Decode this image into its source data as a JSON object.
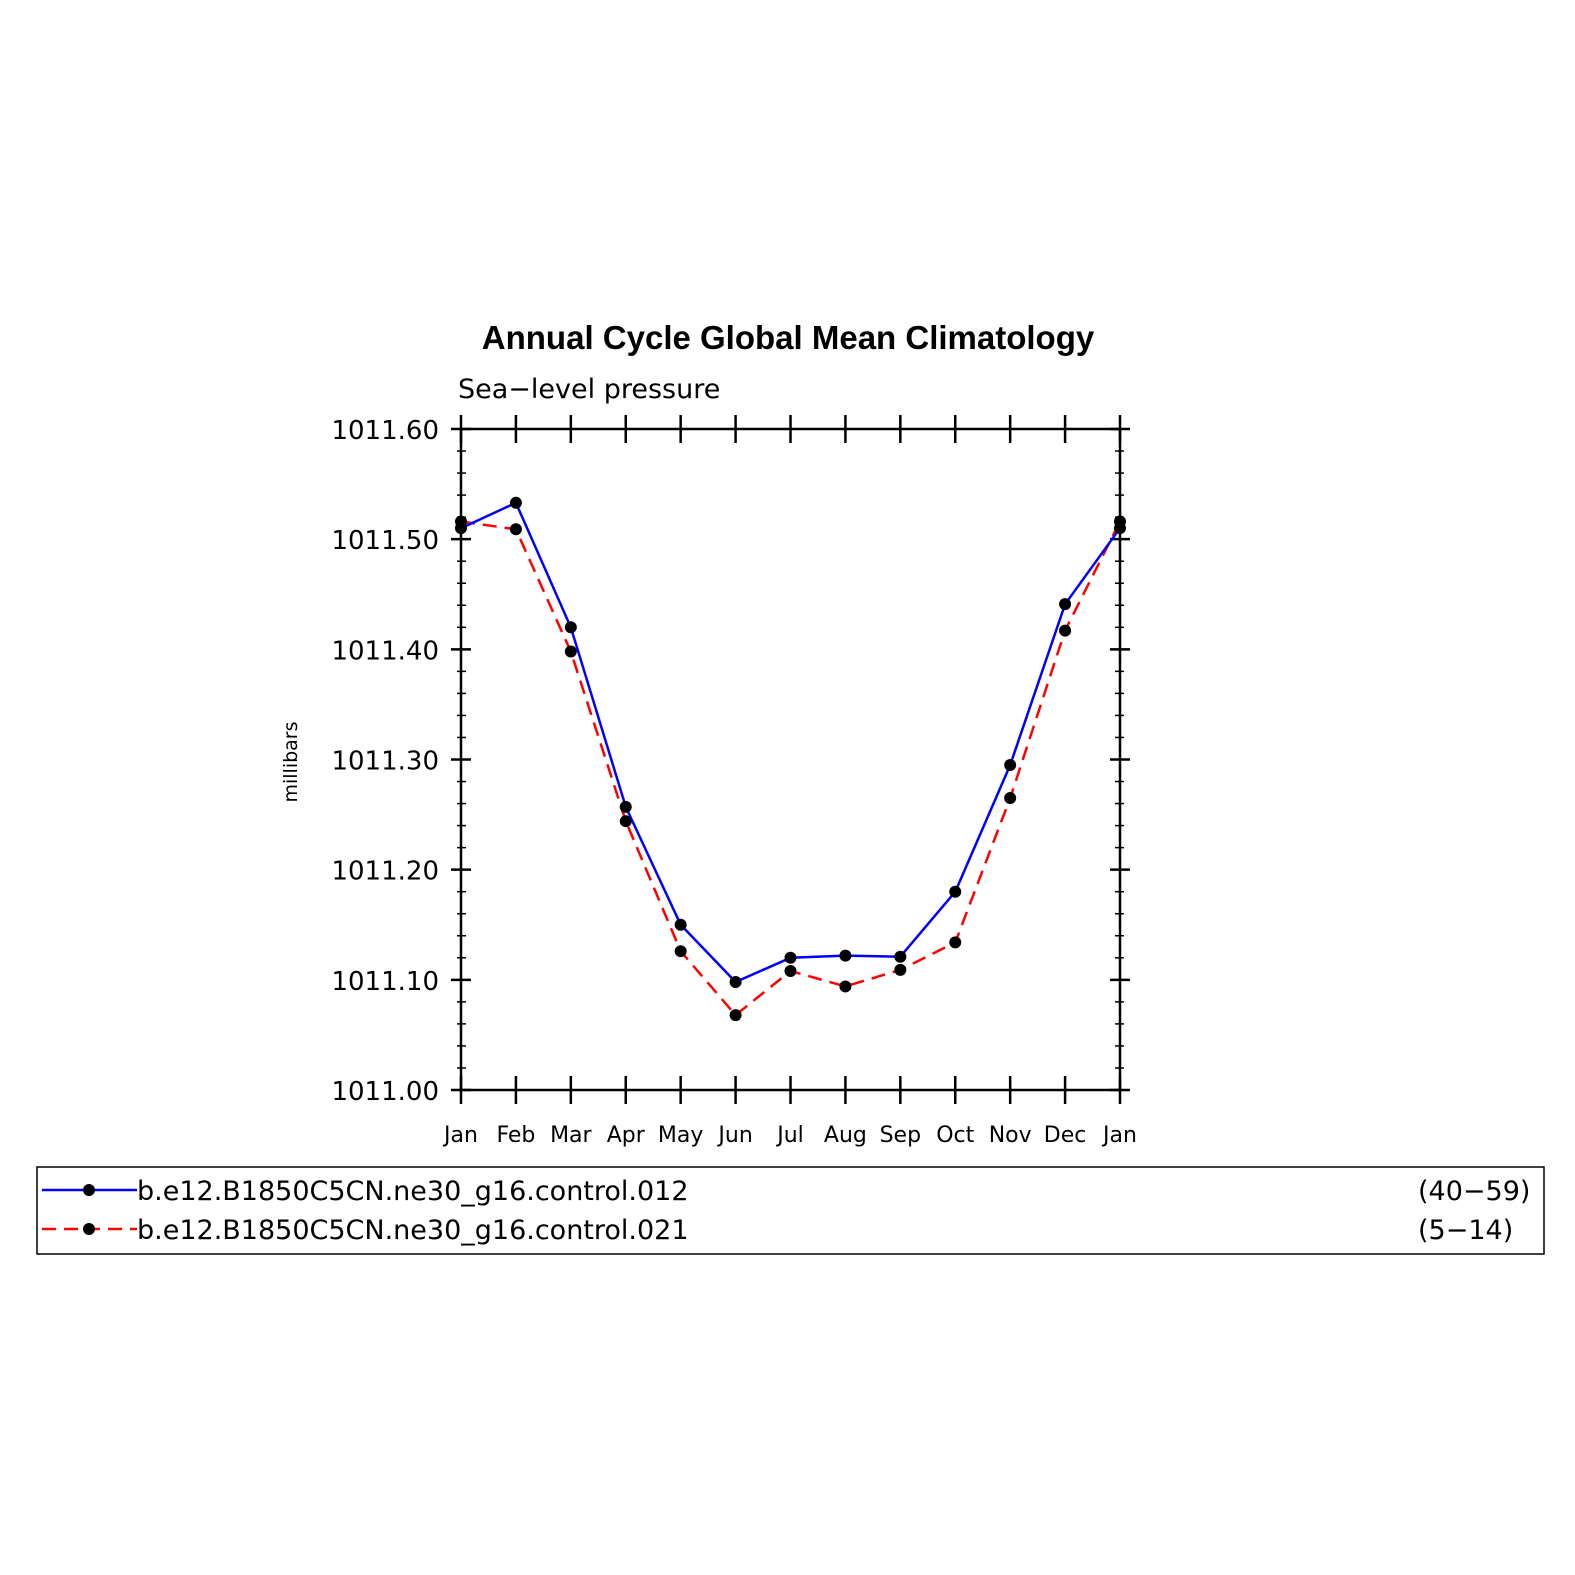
{
  "chart_data": {
    "type": "line",
    "title": "Annual Cycle Global Mean Climatology",
    "subtitle": "Sea−level pressure",
    "xlabel": "",
    "ylabel": "millibars",
    "categories": [
      "Jan",
      "Feb",
      "Mar",
      "Apr",
      "May",
      "Jun",
      "Jul",
      "Aug",
      "Sep",
      "Oct",
      "Nov",
      "Dec",
      "Jan"
    ],
    "ylim": [
      1011.0,
      1011.6
    ],
    "yticks": [
      "1011.00",
      "1011.10",
      "1011.20",
      "1011.30",
      "1011.40",
      "1011.50",
      "1011.60"
    ],
    "grid": false,
    "legend_position": "bottom",
    "series": [
      {
        "name": "b.e12.B1850C5CN.ne30_g16.control.012",
        "years": "(40−59)",
        "color": "#0000ff",
        "style": "solid",
        "values": [
          1011.51,
          1011.533,
          1011.42,
          1011.257,
          1011.15,
          1011.098,
          1011.12,
          1011.122,
          1011.121,
          1011.18,
          1011.295,
          1011.441,
          1011.51
        ]
      },
      {
        "name": "b.e12.B1850C5CN.ne30_g16.control.021",
        "years": "(5−14)",
        "color": "#ff0000",
        "style": "dashed",
        "values": [
          1011.516,
          1011.509,
          1011.398,
          1011.244,
          1011.126,
          1011.068,
          1011.108,
          1011.094,
          1011.109,
          1011.134,
          1011.265,
          1011.417,
          1011.516
        ]
      }
    ]
  }
}
